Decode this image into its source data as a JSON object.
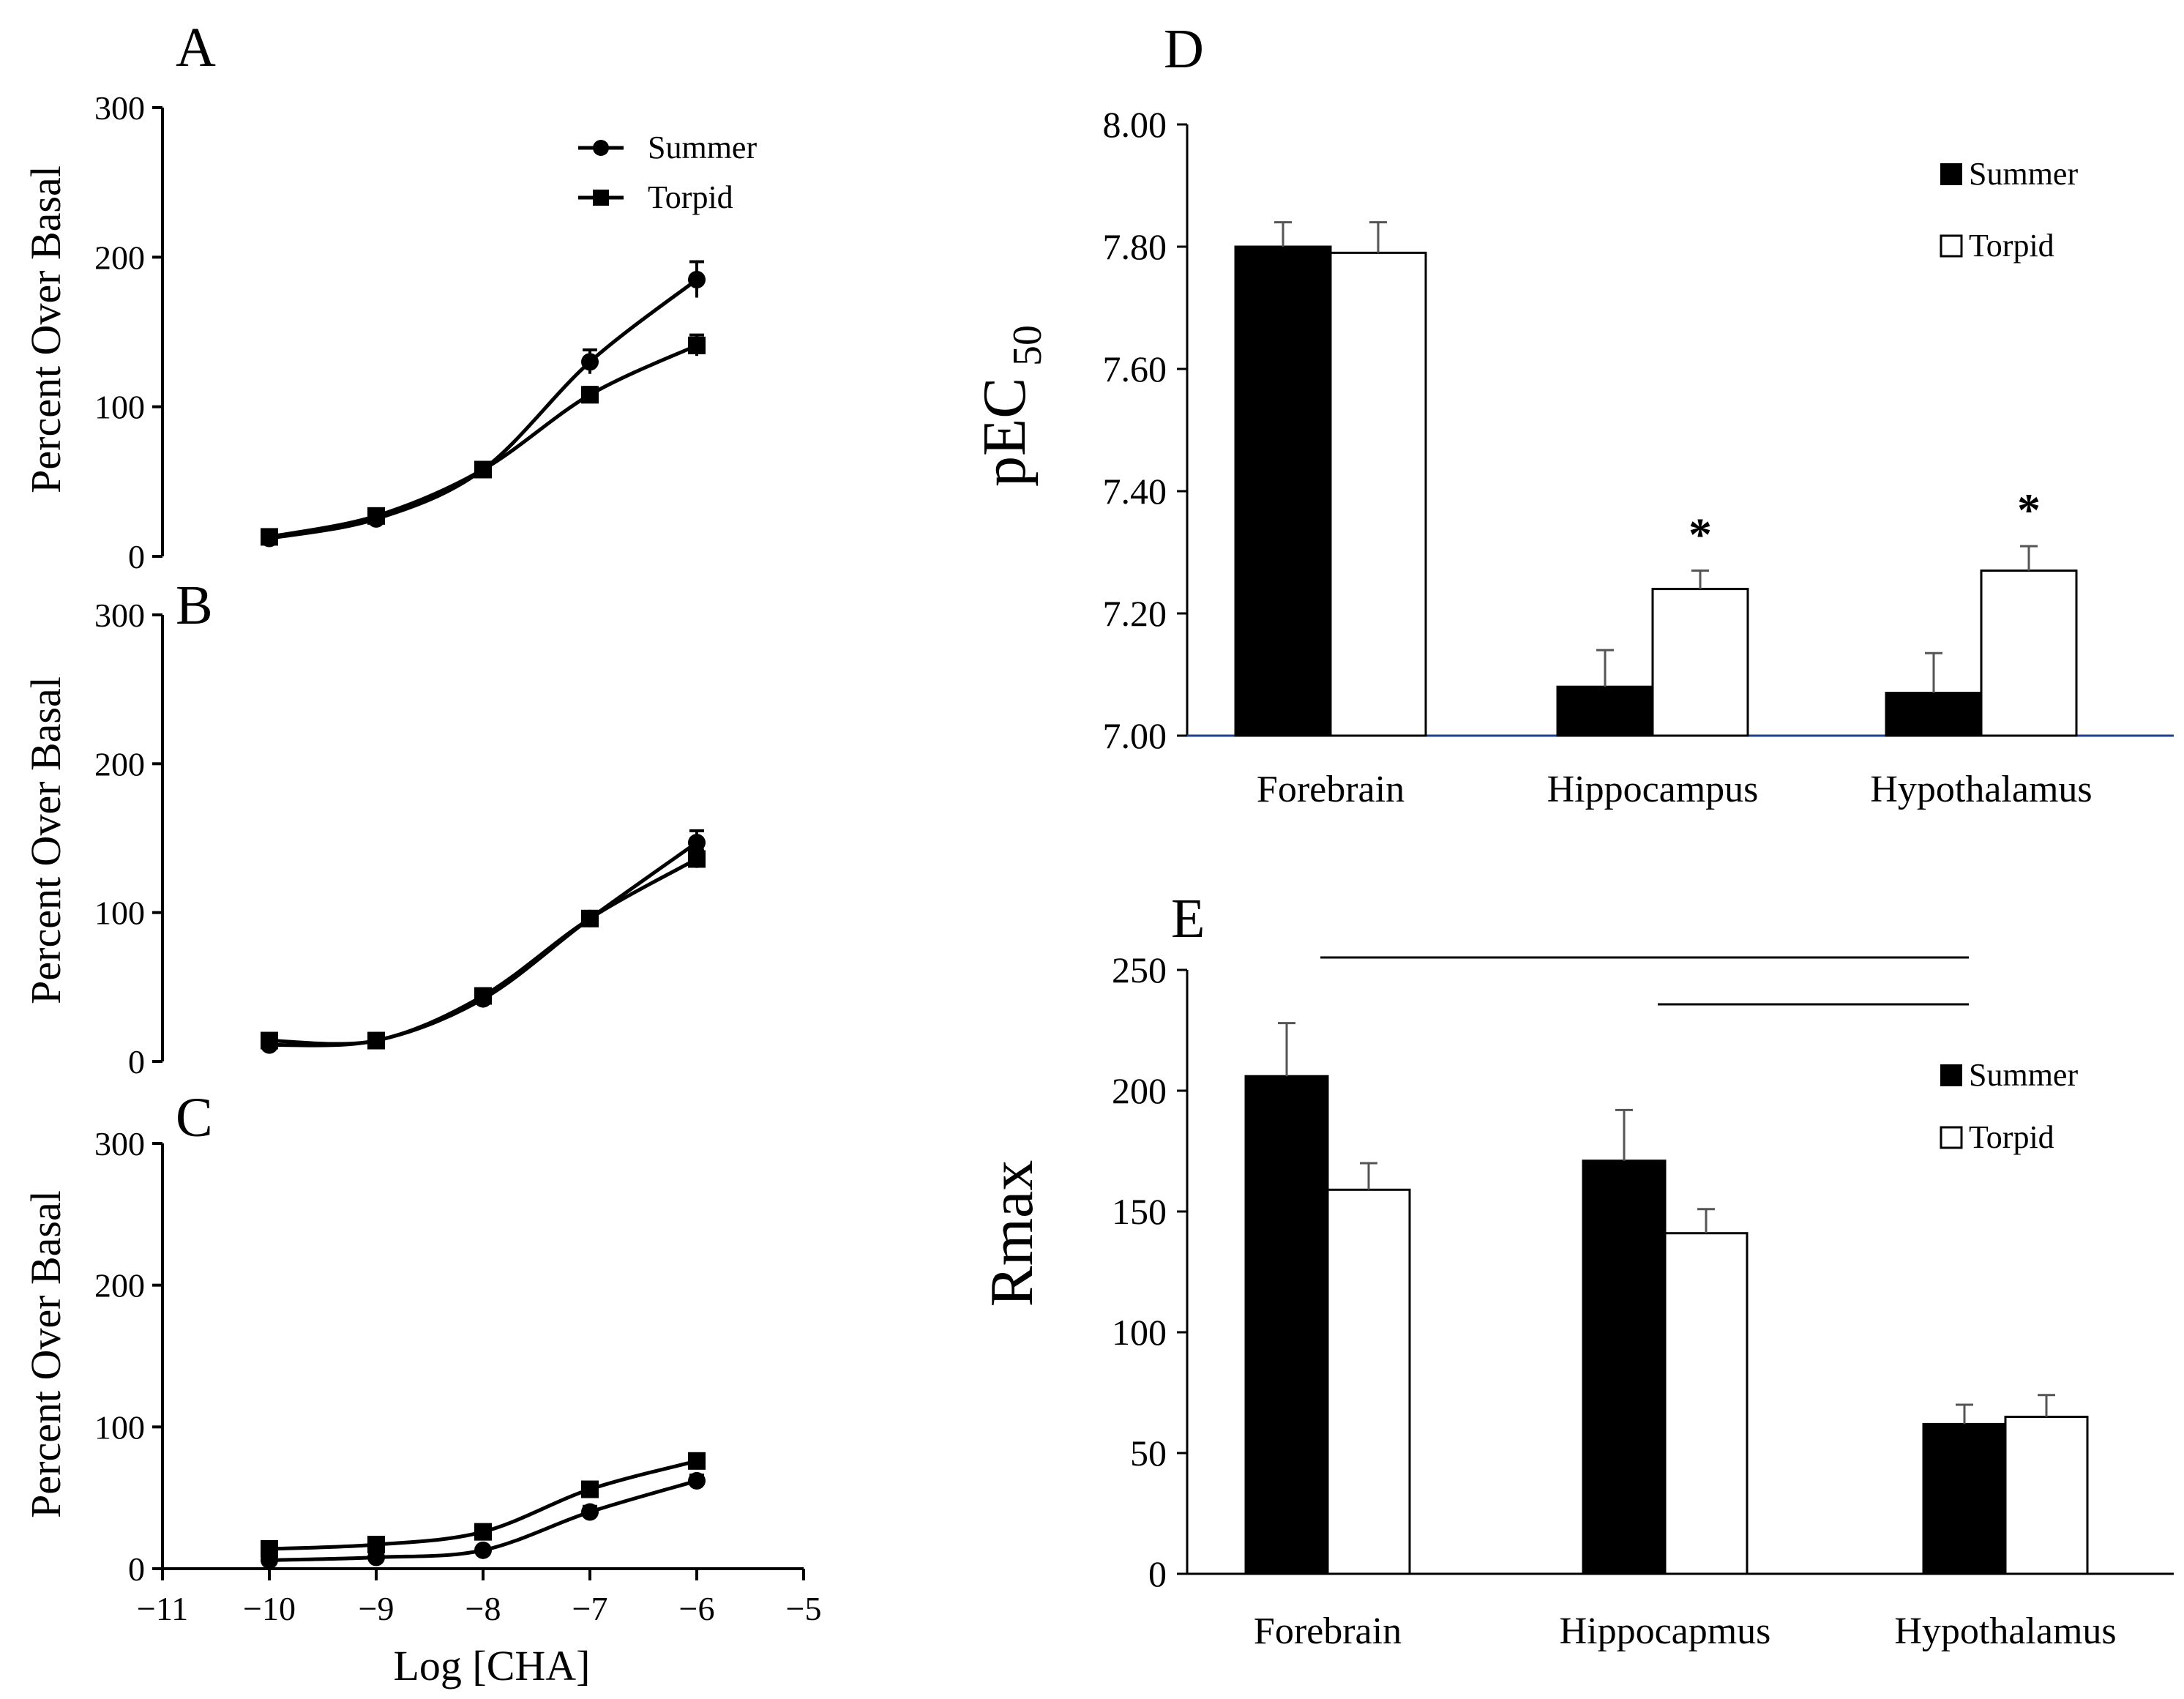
{
  "chart_data": [
    {
      "panel": "A",
      "type": "line",
      "xlabel": "",
      "ylabel": "Percent Over Basal",
      "xlim": [
        -11,
        -5
      ],
      "ylim": [
        0,
        300
      ],
      "yticks": [
        0,
        100,
        200,
        300
      ],
      "legend": {
        "position": "top-right",
        "entries": [
          "Summer",
          "Torpid"
        ]
      },
      "series": [
        {
          "name": "Summer",
          "marker": "circle",
          "x": [
            -10,
            -9,
            -8,
            -7,
            -6
          ],
          "y": [
            12,
            25,
            58,
            130,
            185
          ],
          "err": [
            2,
            3,
            4,
            8,
            12
          ]
        },
        {
          "name": "Torpid",
          "marker": "square",
          "x": [
            -10,
            -9,
            -8,
            -7,
            -6
          ],
          "y": [
            13,
            27,
            58,
            108,
            141
          ],
          "err": [
            2,
            3,
            3,
            5,
            7
          ]
        }
      ]
    },
    {
      "panel": "B",
      "type": "line",
      "xlabel": "",
      "ylabel": "Percent Over Basal",
      "xlim": [
        -11,
        -5
      ],
      "ylim": [
        0,
        300
      ],
      "yticks": [
        0,
        100,
        200,
        300
      ],
      "series": [
        {
          "name": "Summer",
          "marker": "circle",
          "x": [
            -10,
            -9,
            -8,
            -7,
            -6
          ],
          "y": [
            11,
            14,
            42,
            96,
            147
          ],
          "err": [
            2,
            2,
            4,
            4,
            8
          ]
        },
        {
          "name": "Torpid",
          "marker": "square",
          "x": [
            -10,
            -9,
            -8,
            -7,
            -6
          ],
          "y": [
            14,
            14,
            44,
            96,
            136
          ],
          "err": [
            2,
            2,
            4,
            4,
            6
          ]
        }
      ]
    },
    {
      "panel": "C",
      "type": "line",
      "xlabel": "Log [CHA]",
      "ylabel": "Percent Over Basal",
      "xlim": [
        -11,
        -5
      ],
      "ylim": [
        0,
        300
      ],
      "xticks": [
        -11,
        -10,
        -9,
        -8,
        -7,
        -6,
        -5
      ],
      "yticks": [
        0,
        100,
        200,
        300
      ],
      "series": [
        {
          "name": "Summer",
          "marker": "circle",
          "x": [
            -10,
            -9,
            -8,
            -7,
            -6
          ],
          "y": [
            6,
            8,
            13,
            40,
            62
          ],
          "err": [
            2,
            2,
            2,
            4,
            4
          ]
        },
        {
          "name": "Torpid",
          "marker": "square",
          "x": [
            -10,
            -9,
            -8,
            -7,
            -6
          ],
          "y": [
            14,
            17,
            26,
            56,
            76
          ],
          "err": [
            2,
            2,
            3,
            4,
            5
          ]
        }
      ]
    },
    {
      "panel": "D",
      "type": "bar",
      "ylabel_main": "pEC",
      "ylabel_sub": "50",
      "categories": [
        "Forebrain",
        "Hippocampus",
        "Hypothalamus"
      ],
      "ylim": [
        7.0,
        8.0
      ],
      "yticks": [
        "7.00",
        "7.20",
        "7.40",
        "7.60",
        "7.80",
        "8.00"
      ],
      "legend": {
        "position": "top-right",
        "entries": [
          "Summer",
          "Torpid"
        ]
      },
      "series": [
        {
          "name": "Summer",
          "fill": "#000000",
          "values": [
            7.8,
            7.08,
            7.07
          ],
          "err": [
            0.04,
            0.06,
            0.065
          ]
        },
        {
          "name": "Torpid",
          "fill": "#ffffff",
          "values": [
            7.79,
            7.24,
            7.27
          ],
          "err": [
            0.05,
            0.03,
            0.04
          ]
        }
      ],
      "annotations": [
        {
          "category": "Hippocampus",
          "series": "Torpid",
          "text": "*"
        },
        {
          "category": "Hypothalamus",
          "series": "Torpid",
          "text": "*"
        }
      ],
      "baseline_color": "#1f3f8f"
    },
    {
      "panel": "E",
      "type": "bar",
      "ylabel": "Rmax",
      "categories": [
        "Forebrain",
        "Hippocapmus",
        "Hypothalamus"
      ],
      "ylim": [
        0,
        250
      ],
      "yticks": [
        "0",
        "50",
        "100",
        "150",
        "200",
        "250"
      ],
      "legend": {
        "position": "top-right",
        "entries": [
          "Summer",
          "Torpid"
        ]
      },
      "series": [
        {
          "name": "Summer",
          "fill": "#000000",
          "values": [
            206,
            171,
            62
          ],
          "err": [
            22,
            21,
            8
          ]
        },
        {
          "name": "Torpid",
          "fill": "#ffffff",
          "values": [
            159,
            141,
            65
          ],
          "err": [
            11,
            10,
            9
          ]
        }
      ],
      "significance_lines": [
        {
          "from": "Forebrain",
          "to": "Hypothalamus",
          "level": 1
        },
        {
          "from": "Hippocapmus",
          "to": "Hypothalamus",
          "level": 2
        }
      ]
    }
  ]
}
